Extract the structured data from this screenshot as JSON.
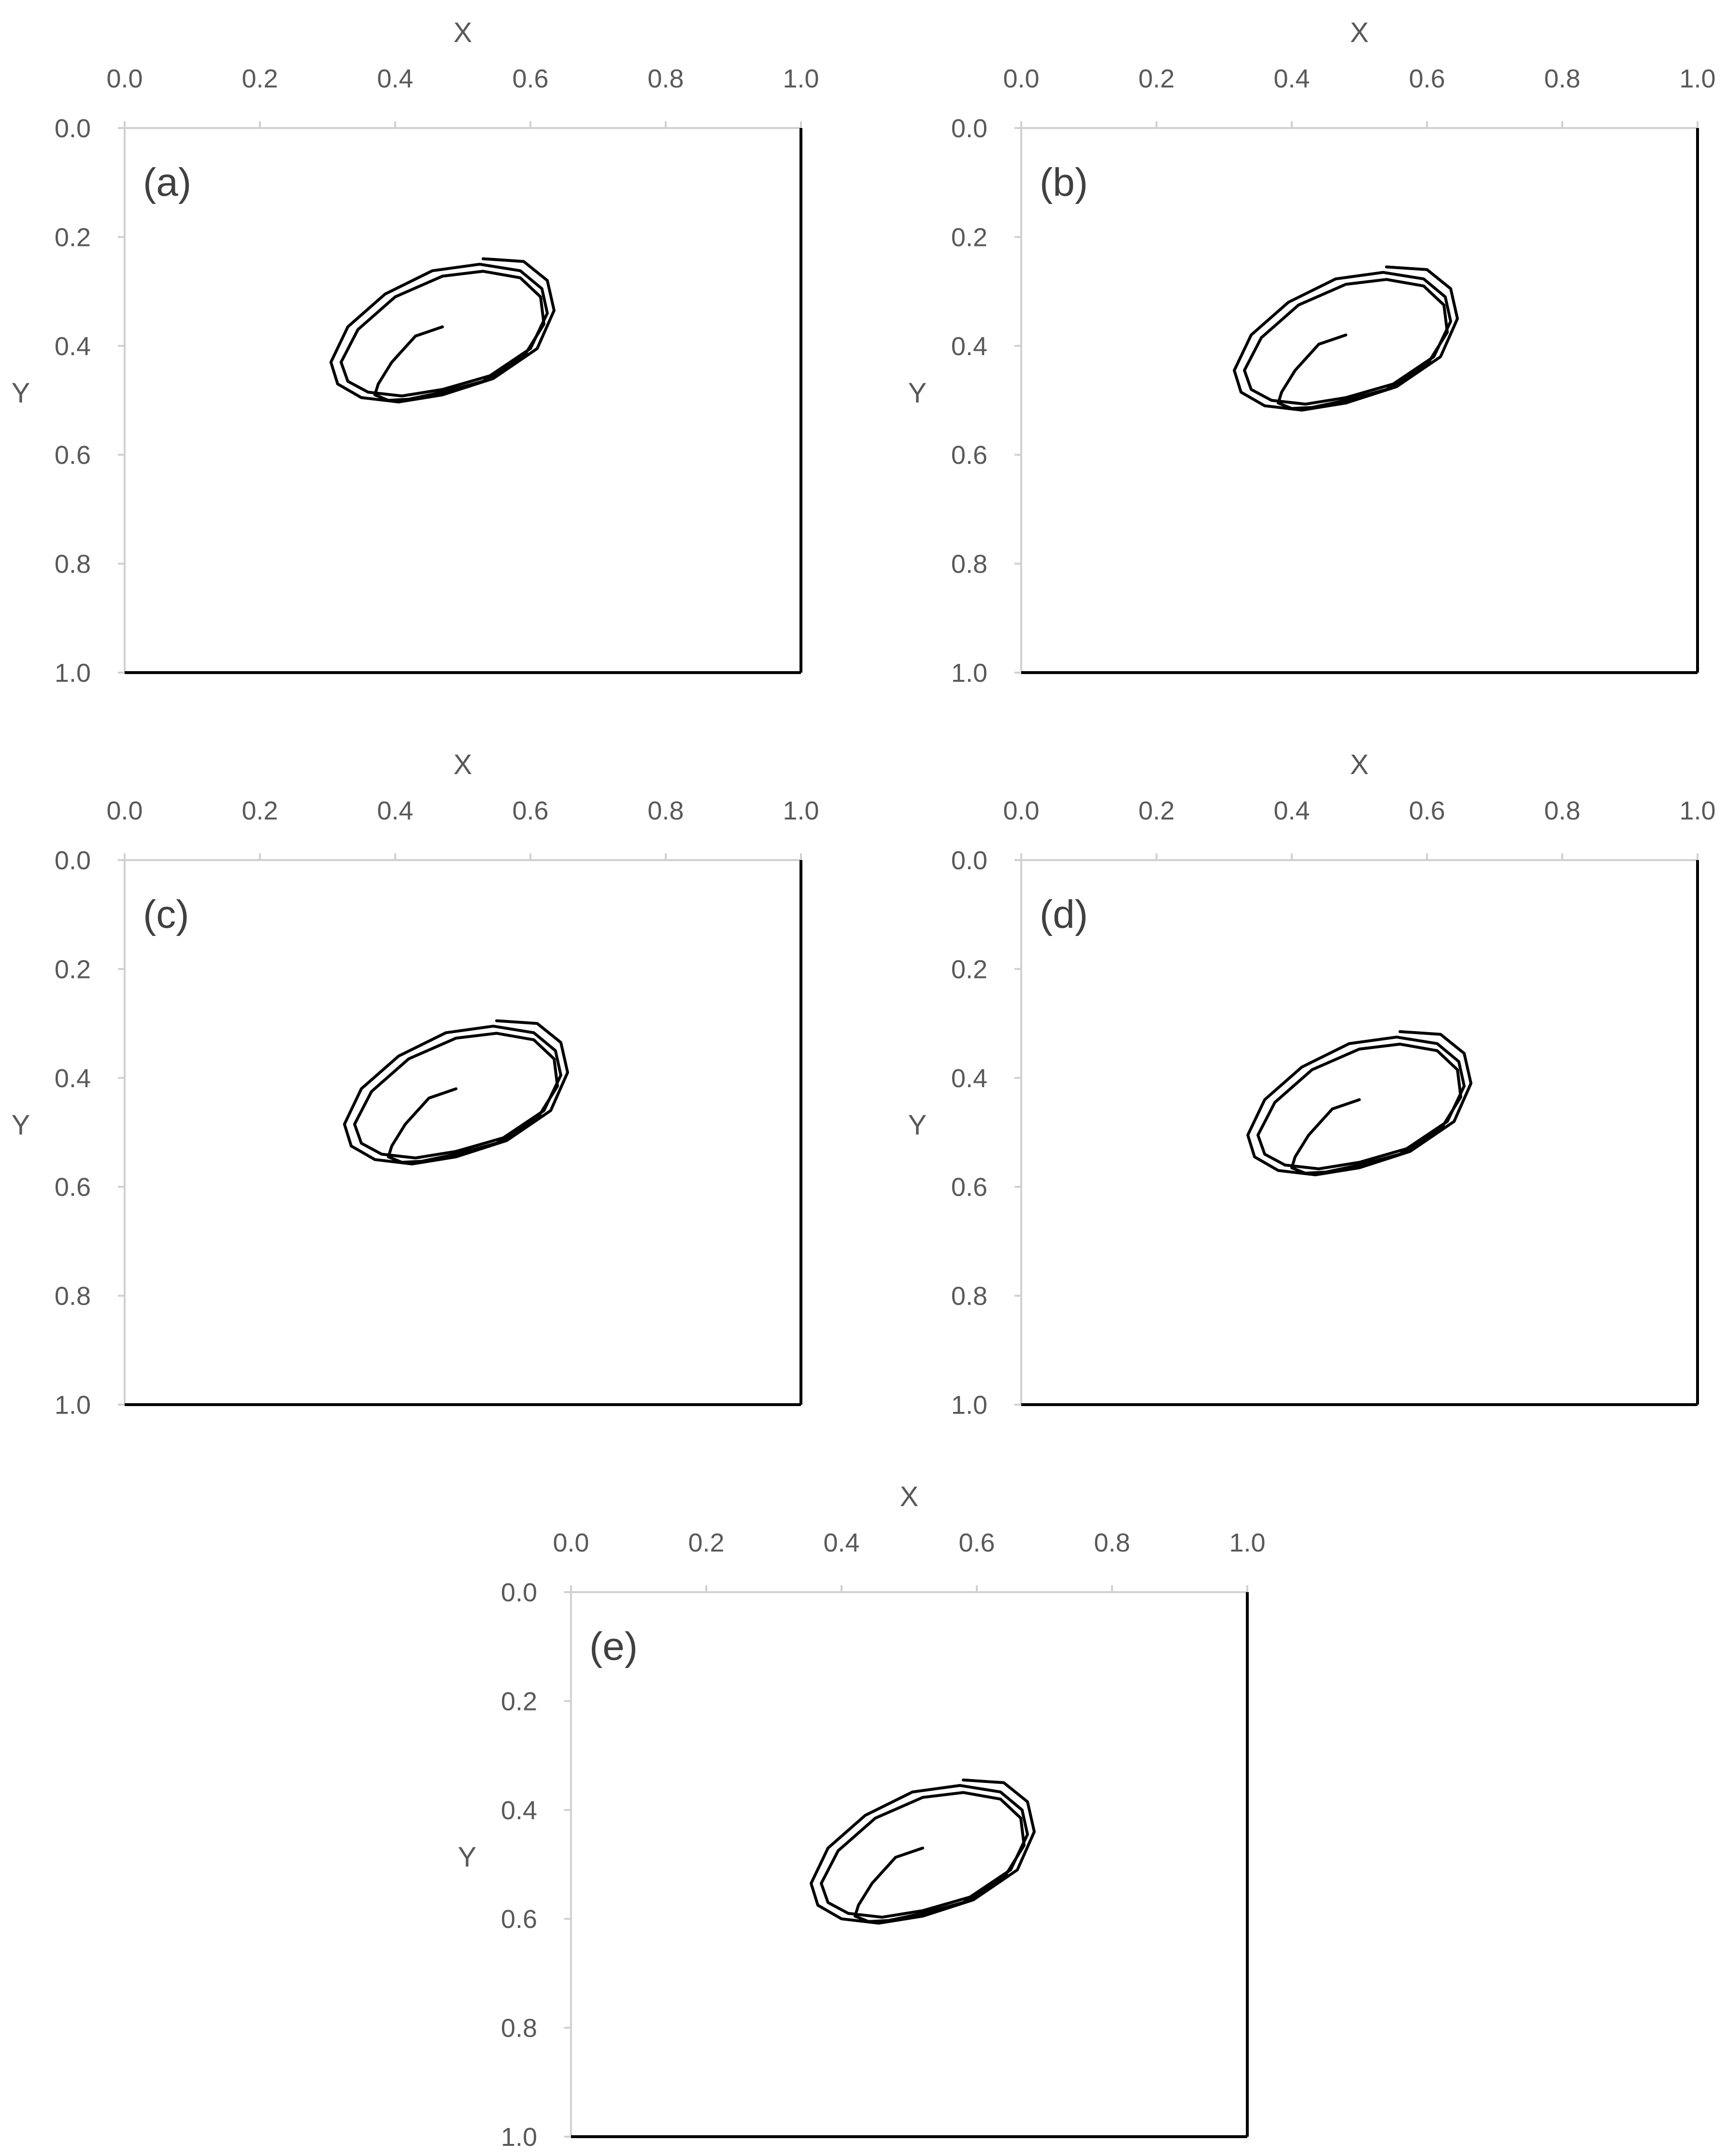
{
  "chart_data": [
    {
      "type": "line",
      "panel_label": "(a)",
      "xlabel": "X",
      "ylabel": "Y",
      "xlim": [
        0,
        1
      ],
      "ylim": [
        0,
        1
      ],
      "y_inverted": true,
      "x_ticks": [
        "0.0",
        "0.2",
        "0.4",
        "0.6",
        "0.8",
        "1.0"
      ],
      "y_ticks": [
        "0.0",
        "0.2",
        "0.4",
        "0.6",
        "0.8",
        "1.0"
      ],
      "grid": false,
      "series": [
        {
          "values": [
            [
              0.47,
              0.365
            ],
            [
              0.43,
              0.382
            ],
            [
              0.395,
              0.43
            ],
            [
              0.375,
              0.47
            ],
            [
              0.37,
              0.49
            ],
            [
              0.39,
              0.5
            ],
            [
              0.42,
              0.498
            ],
            [
              0.47,
              0.485
            ],
            [
              0.53,
              0.465
            ],
            [
              0.59,
              0.42
            ],
            [
              0.62,
              0.36
            ],
            [
              0.615,
              0.31
            ],
            [
              0.585,
              0.275
            ],
            [
              0.53,
              0.263
            ],
            [
              0.47,
              0.272
            ],
            [
              0.4,
              0.31
            ],
            [
              0.345,
              0.37
            ],
            [
              0.32,
              0.43
            ],
            [
              0.33,
              0.465
            ],
            [
              0.36,
              0.485
            ],
            [
              0.41,
              0.492
            ],
            [
              0.47,
              0.48
            ],
            [
              0.54,
              0.455
            ],
            [
              0.6,
              0.405
            ],
            [
              0.625,
              0.34
            ],
            [
              0.617,
              0.295
            ],
            [
              0.585,
              0.262
            ],
            [
              0.525,
              0.25
            ],
            [
              0.455,
              0.262
            ],
            [
              0.385,
              0.305
            ],
            [
              0.33,
              0.365
            ],
            [
              0.305,
              0.43
            ],
            [
              0.315,
              0.47
            ],
            [
              0.35,
              0.495
            ],
            [
              0.405,
              0.503
            ],
            [
              0.47,
              0.49
            ],
            [
              0.545,
              0.46
            ],
            [
              0.61,
              0.405
            ],
            [
              0.635,
              0.335
            ],
            [
              0.625,
              0.28
            ],
            [
              0.59,
              0.245
            ],
            [
              0.53,
              0.24
            ]
          ]
        }
      ]
    },
    {
      "type": "line",
      "panel_label": "(b)",
      "xlabel": "X",
      "ylabel": "Y",
      "xlim": [
        0,
        1
      ],
      "ylim": [
        0,
        1
      ],
      "y_inverted": true,
      "x_ticks": [
        "0.0",
        "0.2",
        "0.4",
        "0.6",
        "0.8",
        "1.0"
      ],
      "y_ticks": [
        "0.0",
        "0.2",
        "0.4",
        "0.6",
        "0.8",
        "1.0"
      ],
      "grid": false,
      "series": [
        {
          "values": [
            [
              0.48,
              0.38
            ],
            [
              0.44,
              0.397
            ],
            [
              0.405,
              0.445
            ],
            [
              0.385,
              0.485
            ],
            [
              0.38,
              0.505
            ],
            [
              0.4,
              0.515
            ],
            [
              0.43,
              0.513
            ],
            [
              0.48,
              0.5
            ],
            [
              0.54,
              0.48
            ],
            [
              0.6,
              0.435
            ],
            [
              0.63,
              0.375
            ],
            [
              0.625,
              0.325
            ],
            [
              0.595,
              0.29
            ],
            [
              0.54,
              0.278
            ],
            [
              0.48,
              0.287
            ],
            [
              0.41,
              0.325
            ],
            [
              0.355,
              0.385
            ],
            [
              0.33,
              0.445
            ],
            [
              0.34,
              0.48
            ],
            [
              0.37,
              0.5
            ],
            [
              0.42,
              0.507
            ],
            [
              0.48,
              0.495
            ],
            [
              0.55,
              0.47
            ],
            [
              0.61,
              0.42
            ],
            [
              0.635,
              0.355
            ],
            [
              0.627,
              0.31
            ],
            [
              0.595,
              0.277
            ],
            [
              0.535,
              0.265
            ],
            [
              0.465,
              0.277
            ],
            [
              0.395,
              0.32
            ],
            [
              0.34,
              0.38
            ],
            [
              0.315,
              0.445
            ],
            [
              0.325,
              0.485
            ],
            [
              0.36,
              0.51
            ],
            [
              0.415,
              0.518
            ],
            [
              0.48,
              0.505
            ],
            [
              0.555,
              0.475
            ],
            [
              0.62,
              0.42
            ],
            [
              0.645,
              0.35
            ],
            [
              0.635,
              0.295
            ],
            [
              0.6,
              0.26
            ],
            [
              0.54,
              0.255
            ]
          ]
        }
      ]
    },
    {
      "type": "line",
      "panel_label": "(c)",
      "xlabel": "X",
      "ylabel": "Y",
      "xlim": [
        0,
        1
      ],
      "ylim": [
        0,
        1
      ],
      "y_inverted": true,
      "x_ticks": [
        "0.0",
        "0.2",
        "0.4",
        "0.6",
        "0.8",
        "1.0"
      ],
      "y_ticks": [
        "0.0",
        "0.2",
        "0.4",
        "0.6",
        "0.8",
        "1.0"
      ],
      "grid": false,
      "series": [
        {
          "values": [
            [
              0.49,
              0.42
            ],
            [
              0.45,
              0.437
            ],
            [
              0.415,
              0.485
            ],
            [
              0.395,
              0.525
            ],
            [
              0.39,
              0.545
            ],
            [
              0.41,
              0.555
            ],
            [
              0.44,
              0.553
            ],
            [
              0.49,
              0.54
            ],
            [
              0.55,
              0.52
            ],
            [
              0.61,
              0.475
            ],
            [
              0.64,
              0.415
            ],
            [
              0.635,
              0.365
            ],
            [
              0.605,
              0.33
            ],
            [
              0.55,
              0.318
            ],
            [
              0.49,
              0.327
            ],
            [
              0.42,
              0.365
            ],
            [
              0.365,
              0.425
            ],
            [
              0.34,
              0.485
            ],
            [
              0.35,
              0.52
            ],
            [
              0.38,
              0.54
            ],
            [
              0.43,
              0.547
            ],
            [
              0.49,
              0.535
            ],
            [
              0.56,
              0.51
            ],
            [
              0.62,
              0.46
            ],
            [
              0.645,
              0.395
            ],
            [
              0.637,
              0.35
            ],
            [
              0.605,
              0.317
            ],
            [
              0.545,
              0.305
            ],
            [
              0.475,
              0.317
            ],
            [
              0.405,
              0.36
            ],
            [
              0.35,
              0.42
            ],
            [
              0.325,
              0.485
            ],
            [
              0.335,
              0.525
            ],
            [
              0.37,
              0.55
            ],
            [
              0.425,
              0.558
            ],
            [
              0.49,
              0.545
            ],
            [
              0.565,
              0.515
            ],
            [
              0.63,
              0.46
            ],
            [
              0.655,
              0.39
            ],
            [
              0.645,
              0.335
            ],
            [
              0.61,
              0.3
            ],
            [
              0.55,
              0.295
            ]
          ]
        }
      ]
    },
    {
      "type": "line",
      "panel_label": "(d)",
      "xlabel": "X",
      "ylabel": "Y",
      "xlim": [
        0,
        1
      ],
      "ylim": [
        0,
        1
      ],
      "y_inverted": true,
      "x_ticks": [
        "0.0",
        "0.2",
        "0.4",
        "0.6",
        "0.8",
        "1.0"
      ],
      "y_ticks": [
        "0.0",
        "0.2",
        "0.4",
        "0.6",
        "0.8",
        "1.0"
      ],
      "grid": false,
      "series": [
        {
          "values": [
            [
              0.5,
              0.44
            ],
            [
              0.46,
              0.457
            ],
            [
              0.425,
              0.505
            ],
            [
              0.405,
              0.545
            ],
            [
              0.4,
              0.565
            ],
            [
              0.42,
              0.575
            ],
            [
              0.45,
              0.573
            ],
            [
              0.5,
              0.56
            ],
            [
              0.56,
              0.54
            ],
            [
              0.62,
              0.495
            ],
            [
              0.65,
              0.435
            ],
            [
              0.645,
              0.385
            ],
            [
              0.615,
              0.35
            ],
            [
              0.56,
              0.338
            ],
            [
              0.5,
              0.347
            ],
            [
              0.43,
              0.385
            ],
            [
              0.375,
              0.445
            ],
            [
              0.35,
              0.505
            ],
            [
              0.36,
              0.54
            ],
            [
              0.39,
              0.56
            ],
            [
              0.44,
              0.567
            ],
            [
              0.5,
              0.555
            ],
            [
              0.57,
              0.53
            ],
            [
              0.63,
              0.48
            ],
            [
              0.655,
              0.415
            ],
            [
              0.647,
              0.37
            ],
            [
              0.615,
              0.337
            ],
            [
              0.555,
              0.325
            ],
            [
              0.485,
              0.337
            ],
            [
              0.415,
              0.38
            ],
            [
              0.36,
              0.44
            ],
            [
              0.335,
              0.505
            ],
            [
              0.345,
              0.545
            ],
            [
              0.38,
              0.57
            ],
            [
              0.435,
              0.578
            ],
            [
              0.5,
              0.565
            ],
            [
              0.575,
              0.535
            ],
            [
              0.64,
              0.48
            ],
            [
              0.665,
              0.41
            ],
            [
              0.655,
              0.355
            ],
            [
              0.62,
              0.32
            ],
            [
              0.56,
              0.315
            ]
          ]
        }
      ]
    },
    {
      "type": "line",
      "panel_label": "(e)",
      "xlabel": "X",
      "ylabel": "Y",
      "xlim": [
        0,
        1
      ],
      "ylim": [
        0,
        1
      ],
      "y_inverted": true,
      "x_ticks": [
        "0.0",
        "0.2",
        "0.4",
        "0.6",
        "0.8",
        "1.0"
      ],
      "y_ticks": [
        "0.0",
        "0.2",
        "0.4",
        "0.6",
        "0.8",
        "1.0"
      ],
      "grid": false,
      "series": [
        {
          "values": [
            [
              0.52,
              0.47
            ],
            [
              0.48,
              0.487
            ],
            [
              0.445,
              0.535
            ],
            [
              0.425,
              0.575
            ],
            [
              0.42,
              0.595
            ],
            [
              0.44,
              0.605
            ],
            [
              0.47,
              0.603
            ],
            [
              0.52,
              0.59
            ],
            [
              0.58,
              0.57
            ],
            [
              0.64,
              0.525
            ],
            [
              0.67,
              0.465
            ],
            [
              0.665,
              0.415
            ],
            [
              0.635,
              0.38
            ],
            [
              0.58,
              0.368
            ],
            [
              0.52,
              0.377
            ],
            [
              0.45,
              0.415
            ],
            [
              0.395,
              0.475
            ],
            [
              0.37,
              0.535
            ],
            [
              0.38,
              0.57
            ],
            [
              0.41,
              0.59
            ],
            [
              0.46,
              0.597
            ],
            [
              0.52,
              0.585
            ],
            [
              0.59,
              0.56
            ],
            [
              0.65,
              0.51
            ],
            [
              0.675,
              0.445
            ],
            [
              0.667,
              0.4
            ],
            [
              0.635,
              0.367
            ],
            [
              0.575,
              0.355
            ],
            [
              0.505,
              0.367
            ],
            [
              0.435,
              0.41
            ],
            [
              0.38,
              0.47
            ],
            [
              0.355,
              0.535
            ],
            [
              0.365,
              0.575
            ],
            [
              0.4,
              0.6
            ],
            [
              0.455,
              0.608
            ],
            [
              0.52,
              0.595
            ],
            [
              0.595,
              0.565
            ],
            [
              0.66,
              0.51
            ],
            [
              0.685,
              0.44
            ],
            [
              0.675,
              0.385
            ],
            [
              0.64,
              0.35
            ],
            [
              0.58,
              0.345
            ]
          ]
        }
      ]
    }
  ]
}
